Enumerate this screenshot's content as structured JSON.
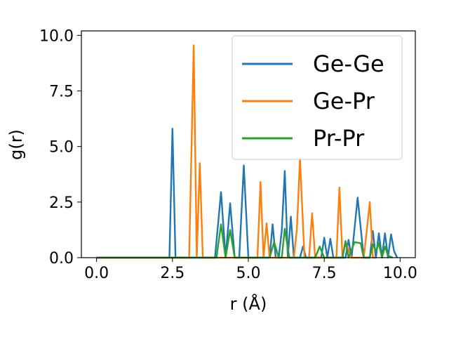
{
  "chart_data": {
    "type": "line",
    "title": "",
    "xlabel": "r (Å)",
    "ylabel": "g(r)",
    "xlim": [
      -0.5,
      10.5
    ],
    "ylim": [
      0,
      10.2
    ],
    "xticks": [
      0.0,
      2.5,
      5.0,
      7.5,
      10.0
    ],
    "xtick_labels": [
      "0.0",
      "2.5",
      "5.0",
      "7.5",
      "10.0"
    ],
    "yticks": [
      0.0,
      2.5,
      5.0,
      7.5,
      10.0
    ],
    "ytick_labels": [
      "0.0",
      "2.5",
      "5.0",
      "7.5",
      "10.0"
    ],
    "legend_position": "top-right",
    "series": [
      {
        "name": "Ge-Ge",
        "color": "#1f77b4",
        "x": [
          0,
          2.4,
          2.5,
          2.6,
          3.9,
          4.1,
          4.25,
          4.4,
          4.55,
          4.7,
          4.85,
          5.0,
          5.7,
          5.8,
          5.9,
          6.0,
          6.1,
          6.2,
          6.3,
          6.4,
          6.5,
          6.7,
          6.8,
          6.9,
          7.4,
          7.5,
          7.6,
          7.7,
          7.8,
          8.2,
          8.3,
          8.4,
          8.6,
          8.8,
          9.0,
          9.1,
          9.2,
          9.3,
          9.4,
          9.5,
          9.6,
          9.7,
          9.8,
          9.9
        ],
        "y": [
          0,
          0,
          5.8,
          0,
          0,
          2.95,
          0,
          2.45,
          0,
          0,
          4.15,
          0,
          0,
          1.5,
          0,
          0,
          1.2,
          3.9,
          0,
          1.85,
          0,
          0,
          0.5,
          0,
          0,
          0.9,
          0,
          0.85,
          0,
          0,
          0.8,
          0,
          2.7,
          0,
          0,
          1.2,
          0,
          1.1,
          0,
          1.1,
          0,
          1.05,
          0.3,
          0
        ]
      },
      {
        "name": "Ge-Pr",
        "color": "#ff7f0e",
        "x": [
          0,
          3.05,
          3.2,
          3.3,
          3.4,
          3.5,
          5.3,
          5.4,
          5.5,
          5.6,
          5.7,
          5.8,
          6.5,
          6.6,
          6.7,
          6.85,
          7.0,
          7.1,
          7.2,
          7.9,
          8.0,
          8.1,
          8.2,
          8.4,
          8.8,
          8.9,
          9.0,
          9.1,
          9.2
        ],
        "y": [
          0,
          0,
          9.55,
          0,
          4.25,
          0,
          0,
          3.4,
          0,
          1.55,
          0,
          0,
          0,
          1.3,
          4.45,
          0,
          0,
          2.0,
          0,
          0,
          3.15,
          0,
          0.7,
          0,
          0,
          1.2,
          2.5,
          0,
          0
        ]
      },
      {
        "name": "Pr-Pr",
        "color": "#2ca02c",
        "x": [
          0,
          3.95,
          4.1,
          4.25,
          4.4,
          4.55,
          4.7,
          5.7,
          5.85,
          6.0,
          6.1,
          6.2,
          6.35,
          6.5,
          7.2,
          7.35,
          7.5,
          8.1,
          8.2,
          8.3,
          8.5,
          8.7,
          8.8,
          9.0,
          9.1,
          9.2,
          9.3,
          9.4,
          9.5,
          9.6,
          9.75
        ],
        "y": [
          0,
          0,
          1.5,
          0,
          1.25,
          0,
          0,
          0,
          0.7,
          0,
          0,
          1.3,
          0,
          0,
          0,
          0.5,
          0,
          0,
          0.75,
          0,
          0.7,
          0.65,
          0,
          0,
          0.6,
          0.3,
          0.65,
          0,
          0.5,
          0.1,
          0
        ]
      }
    ]
  }
}
